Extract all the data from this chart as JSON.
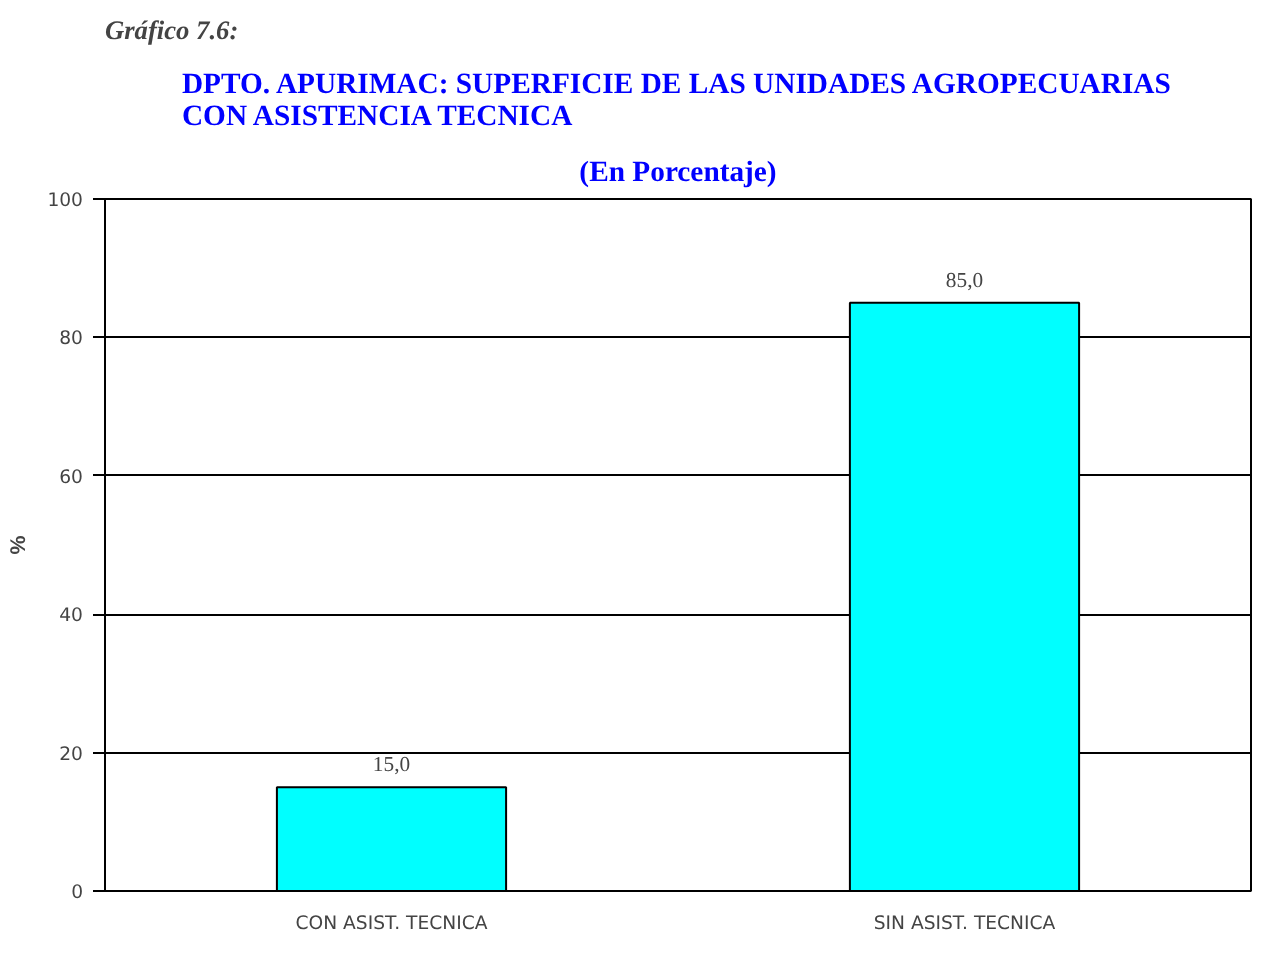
{
  "chart_data": {
    "type": "bar",
    "title": "DPTO. APURIMAC: SUPERFICIE DE LAS UNIDADES AGROPECUARIAS\nCON ASISTENCIA TECNICA",
    "subtitle": "(En Porcentaje)",
    "ylabel": "%",
    "annotations": [
      "Gráfico 7.6:"
    ],
    "categories": [
      "CON ASIST. TECNICA",
      "SIN ASIST. TECNICA"
    ],
    "values": [
      15.0,
      85.0
    ],
    "value_labels": [
      "15,0",
      "85,0"
    ],
    "color": "#00ffff",
    "ylim": [
      0,
      100
    ],
    "yticks": [
      0,
      20,
      40,
      60,
      80,
      100
    ],
    "grid": "y"
  }
}
